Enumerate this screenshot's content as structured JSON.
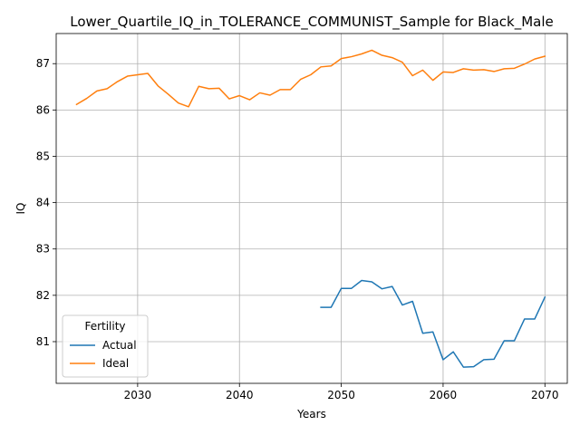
{
  "chart_data": {
    "type": "line",
    "title": "Lower_Quartile_IQ_in_TOLERANCE_COMMUNIST_Sample for Black_Male",
    "xlabel": "Years",
    "ylabel": "IQ",
    "xlim": [
      2022,
      2072.2
    ],
    "ylim": [
      80.1,
      87.65
    ],
    "xticks": [
      2030,
      2040,
      2050,
      2060,
      2070
    ],
    "yticks": [
      81,
      82,
      83,
      84,
      85,
      86,
      87
    ],
    "grid": true,
    "legend": {
      "title": "Fertility",
      "placement": "lower-left"
    },
    "series": [
      {
        "name": "Actual",
        "color": "#1f77b4",
        "x": [
          2048,
          2049,
          2050,
          2051,
          2052,
          2053,
          2054,
          2055,
          2056,
          2057,
          2058,
          2059,
          2060,
          2061,
          2062,
          2063,
          2064,
          2065,
          2066,
          2067,
          2068,
          2069,
          2070
        ],
        "values": [
          81.74,
          81.74,
          82.15,
          82.15,
          82.32,
          82.29,
          82.14,
          82.19,
          81.79,
          81.87,
          81.18,
          81.21,
          80.61,
          80.78,
          80.45,
          80.46,
          80.61,
          80.62,
          81.02,
          81.02,
          81.49,
          81.49,
          81.96
        ]
      },
      {
        "name": "Ideal",
        "color": "#ff7f0e",
        "x": [
          2024,
          2025,
          2026,
          2027,
          2028,
          2029,
          2030,
          2031,
          2032,
          2033,
          2034,
          2035,
          2036,
          2037,
          2038,
          2039,
          2040,
          2041,
          2042,
          2043,
          2044,
          2045,
          2046,
          2047,
          2048,
          2049,
          2050,
          2051,
          2052,
          2053,
          2054,
          2055,
          2056,
          2057,
          2058,
          2059,
          2060,
          2061,
          2062,
          2063,
          2064,
          2065,
          2066,
          2067,
          2068,
          2069,
          2070
        ],
        "values": [
          86.12,
          86.25,
          86.41,
          86.46,
          86.61,
          86.73,
          86.76,
          86.79,
          86.52,
          86.34,
          86.15,
          86.07,
          86.51,
          86.46,
          86.47,
          86.24,
          86.31,
          86.22,
          86.37,
          86.32,
          86.44,
          86.44,
          86.66,
          86.76,
          86.93,
          86.95,
          87.11,
          87.15,
          87.21,
          87.29,
          87.18,
          87.13,
          87.03,
          86.74,
          86.86,
          86.64,
          86.82,
          86.81,
          86.89,
          86.86,
          86.87,
          86.83,
          86.89,
          86.9,
          86.99,
          87.1,
          87.16
        ]
      }
    ]
  }
}
